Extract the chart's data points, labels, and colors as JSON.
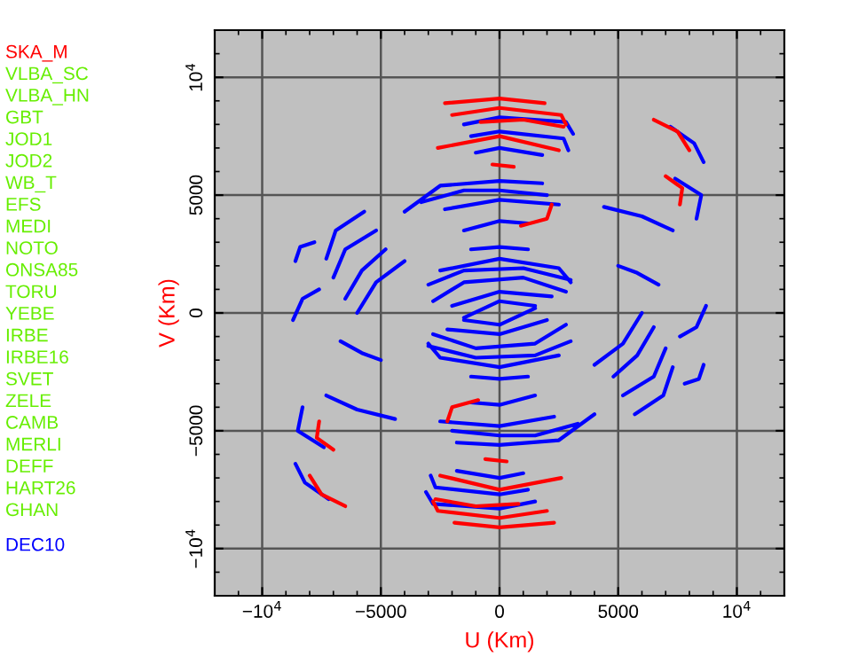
{
  "chart_data": {
    "type": "line",
    "xlabel": "U (Km)",
    "ylabel": "V (Km)",
    "xlim": [
      -12000,
      12000
    ],
    "ylim": [
      -12000,
      12000
    ],
    "xticks": [
      {
        "value": -10000,
        "label": "−10$^{4}$"
      },
      {
        "value": -5000,
        "label": "−5000"
      },
      0,
      5000,
      {
        "value": 10000,
        "label": "10$^{4}$"
      }
    ],
    "yticks": [
      {
        "value": -10000,
        "label": "−10$^{4}$"
      },
      {
        "value": -5000,
        "label": "−5000"
      },
      0,
      5000,
      {
        "value": 10000,
        "label": "10$^{4}$"
      }
    ],
    "grid": true,
    "legend": "left",
    "marker": "none",
    "line_style": "solid",
    "annotations": [
      "VLBA_SC",
      "VLBA_HN",
      "GBT",
      "JOD1",
      "JOD2",
      "WB_T",
      "EFS",
      "MEDI",
      "NOTO",
      "ONSA85",
      "TORU",
      "YEBE",
      "IRBE",
      "IRBE16",
      "SVET",
      "ZELE",
      "CAMB",
      "MERLI",
      "DEFF",
      "HART26",
      "GHAN"
    ],
    "series": [
      {
        "name": "DEC10",
        "color": "#0000ff",
        "x": [
          -1500,
          0,
          2800,
          3100,
          null,
          1500,
          0,
          -2800,
          -3100,
          null,
          -1200,
          0,
          2700,
          2900,
          null,
          1200,
          0,
          -2700,
          -2900,
          null,
          -1000,
          0,
          1800,
          null,
          1000,
          0,
          -1800,
          null,
          -4000,
          -2500,
          0,
          1800,
          null,
          4000,
          2500,
          0,
          -1800,
          null,
          -3300,
          -1500,
          0,
          2000,
          null,
          3300,
          1500,
          0,
          -2000,
          null,
          -2300,
          0,
          2500,
          null,
          2300,
          0,
          -2500,
          null,
          -1500,
          0,
          1200,
          null,
          1500,
          0,
          -1200,
          null,
          -1200,
          0,
          1200,
          null,
          1200,
          0,
          -1200,
          null,
          -2500,
          0,
          2500,
          3000,
          null,
          2500,
          0,
          -2500,
          -3000,
          null,
          -3000,
          -1500,
          1000,
          3000,
          null,
          3000,
          1500,
          -1000,
          -3000,
          null,
          -2800,
          -1500,
          1000,
          2800,
          null,
          2800,
          1500,
          -1000,
          -2800,
          null,
          -2000,
          0,
          2200,
          null,
          2000,
          0,
          -2200,
          null,
          -1500,
          0,
          1500,
          null,
          1500,
          0,
          -1500,
          null,
          -8600,
          -8400,
          -7800,
          null,
          8600,
          8400,
          7800,
          null,
          -7300,
          -6900,
          -5700,
          null,
          7300,
          6900,
          5700,
          null,
          -7000,
          -6500,
          -5200,
          null,
          7000,
          6500,
          5200,
          null,
          -6500,
          -5800,
          -4800,
          null,
          6500,
          5800,
          4800,
          null,
          -6000,
          -5200,
          -4000,
          null,
          6000,
          5200,
          4000,
          null,
          -8700,
          -8300,
          -7600,
          null,
          8700,
          8300,
          7600,
          null,
          -7300,
          -6000,
          -4400,
          null,
          7300,
          6000,
          4400,
          null,
          -6700,
          -5800,
          -5000,
          null,
          6700,
          5800,
          5000,
          null,
          -8300,
          -8500,
          -7400,
          null,
          8300,
          8500,
          7400,
          null,
          -8600,
          -8200,
          -7200,
          null,
          8600,
          8200,
          7200
        ],
        "values": [
          8000,
          8300,
          8100,
          7600,
          null,
          -8000,
          -8300,
          -8100,
          -7600,
          null,
          7500,
          7700,
          7400,
          6900,
          null,
          -7500,
          -7700,
          -7400,
          -6900,
          null,
          6800,
          7000,
          6700,
          null,
          -6800,
          -7000,
          -6700,
          null,
          4300,
          5400,
          5600,
          5500,
          null,
          -4300,
          -5400,
          -5600,
          -5500,
          null,
          4700,
          5200,
          5200,
          5000,
          null,
          -4700,
          -5200,
          -5200,
          -5000,
          null,
          4400,
          4800,
          4600,
          null,
          -4400,
          -4800,
          -4600,
          null,
          3500,
          3900,
          3800,
          null,
          -3500,
          -3900,
          -3800,
          null,
          2700,
          2800,
          2700,
          null,
          -2700,
          -2800,
          -2700,
          null,
          1800,
          2300,
          1900,
          1300,
          null,
          -1800,
          -2300,
          -1900,
          -1300,
          null,
          1200,
          1800,
          1900,
          1400,
          null,
          -1200,
          -1800,
          -1900,
          -1400,
          null,
          500,
          1300,
          1500,
          900,
          null,
          -500,
          -1300,
          -1500,
          -900,
          null,
          300,
          900,
          700,
          null,
          -300,
          -900,
          -700,
          null,
          -200,
          500,
          300,
          null,
          200,
          -500,
          -300,
          null,
          2200,
          2800,
          3000,
          null,
          -2200,
          -2800,
          -3000,
          null,
          2300,
          3500,
          4300,
          null,
          -2300,
          -3500,
          -4300,
          null,
          1500,
          2700,
          3500,
          null,
          -1500,
          -2700,
          -3500,
          null,
          600,
          1800,
          2700,
          null,
          -600,
          -1800,
          -2700,
          null,
          0,
          1300,
          2200,
          null,
          0,
          -1300,
          -2200,
          null,
          -300,
          600,
          1000,
          null,
          300,
          -600,
          -1000,
          null,
          -3500,
          -4100,
          -4500,
          null,
          3500,
          4100,
          4500,
          null,
          -1200,
          -1700,
          -2000,
          null,
          1200,
          1700,
          2000,
          null,
          -4000,
          -5000,
          -5700,
          null,
          4000,
          5000,
          5700,
          null,
          -6400,
          -7200,
          -7900,
          null,
          6400,
          7200,
          7900
        ]
      },
      {
        "name": "SKA_M",
        "color": "#ff0000",
        "x": [
          -2300,
          0,
          1900,
          null,
          -1900,
          0,
          2300,
          null,
          -2000,
          0,
          2600,
          2800,
          null,
          2000,
          0,
          -2600,
          -2800,
          null,
          -800,
          1000,
          2700,
          null,
          800,
          -1000,
          -2700,
          null,
          -2600,
          0,
          2500,
          null,
          2600,
          0,
          -2500,
          null,
          -300,
          600,
          null,
          300,
          -600,
          null,
          6500,
          7500,
          8000,
          null,
          -6500,
          -7500,
          -8000,
          null,
          7000,
          7700,
          7600,
          null,
          -7000,
          -7700,
          -7600,
          null,
          900,
          2000,
          2200,
          null,
          -900,
          -2000,
          -2200
        ],
        "values": [
          8900,
          9100,
          8900,
          null,
          -8900,
          -9100,
          -8900,
          null,
          8400,
          8700,
          8400,
          8000,
          null,
          -8400,
          -8700,
          -8400,
          -8000,
          null,
          8100,
          8200,
          7900,
          null,
          -8100,
          -8200,
          -7900,
          null,
          7000,
          7500,
          6900,
          null,
          -7000,
          -7500,
          -6900,
          null,
          6300,
          6200,
          null,
          -6300,
          -6200,
          null,
          8200,
          7700,
          6900,
          null,
          -8200,
          -7700,
          -6900,
          null,
          5800,
          5300,
          4600,
          null,
          -5800,
          -5300,
          -4600,
          null,
          3700,
          4000,
          4600,
          null,
          -3700,
          -4000,
          -4600
        ]
      }
    ]
  }
}
